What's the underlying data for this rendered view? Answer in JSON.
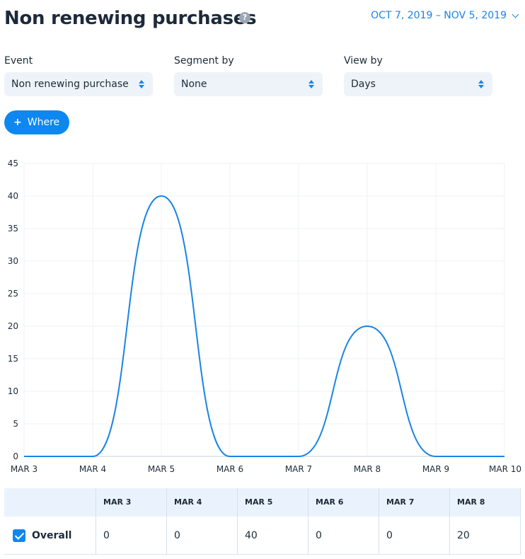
{
  "header": {
    "title": "Non renewing purchases",
    "help_icon": "question-circle-icon",
    "date_range": "OCT 7, 2019 – NOV 5, 2019"
  },
  "filters": {
    "event": {
      "label": "Event",
      "value": "Non renewing purchase"
    },
    "segment": {
      "label": "Segment by",
      "value": "None"
    },
    "view": {
      "label": "View by",
      "value": "Days"
    }
  },
  "where_button": {
    "icon": "plus-icon",
    "label": "Where"
  },
  "colors": {
    "accent": "#0f87f0",
    "line": "#1a84e6",
    "select_bg": "#eef3f9",
    "table_header_bg": "#eaf3fd"
  },
  "chart_data": {
    "type": "line",
    "x": [
      "MAR 3",
      "MAR 4",
      "MAR 5",
      "MAR 6",
      "MAR 7",
      "MAR 8",
      "MAR 9",
      "MAR 10"
    ],
    "y_ticks": [
      0,
      5,
      10,
      15,
      20,
      25,
      30,
      35,
      40,
      45
    ],
    "ylim": [
      0,
      45
    ],
    "grid": true,
    "series": [
      {
        "values": [
          0,
          0,
          40,
          0,
          0,
          20,
          0,
          0
        ]
      }
    ]
  },
  "table": {
    "columns": [
      "MAR 3",
      "MAR 4",
      "MAR 5",
      "MAR 6",
      "MAR 7",
      "MAR 8"
    ],
    "rows": [
      {
        "label": "Overall",
        "checked": true,
        "values": [
          "0",
          "0",
          "40",
          "0",
          "0",
          "20"
        ]
      }
    ]
  }
}
